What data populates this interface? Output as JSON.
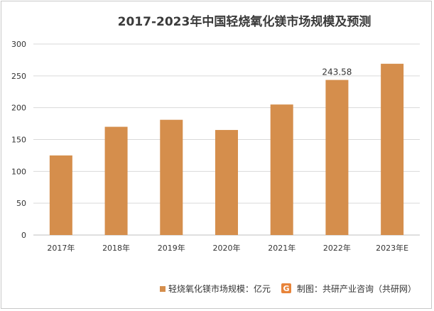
{
  "chart_data": {
    "type": "bar",
    "title": "2017-2023年中国轻烧氧化镁市场规模及预测",
    "categories": [
      "2017年",
      "2018年",
      "2019年",
      "2020年",
      "2021年",
      "2022年",
      "2023年E"
    ],
    "series": [
      {
        "name": "轻烧氧化镁市场规模：亿元",
        "values": [
          125,
          170,
          181,
          165,
          205,
          243.58,
          269
        ],
        "data_labels": [
          "",
          "",
          "",
          "",
          "",
          "243.58",
          ""
        ]
      }
    ],
    "ylim": [
      0,
      300
    ],
    "yticks": [
      0,
      50,
      100,
      150,
      200,
      250,
      300
    ],
    "grid": true,
    "bar_color": "#D58E4C",
    "legend_position": "bottom-left"
  },
  "source": {
    "logo_letter": "G",
    "text": "制图：共研产业咨询（共研网）"
  },
  "colors": {
    "bar": "#D58E4C",
    "grid": "#d9d9d9",
    "axis": "#bfbfbf",
    "logo_orange": "#E8843A"
  }
}
